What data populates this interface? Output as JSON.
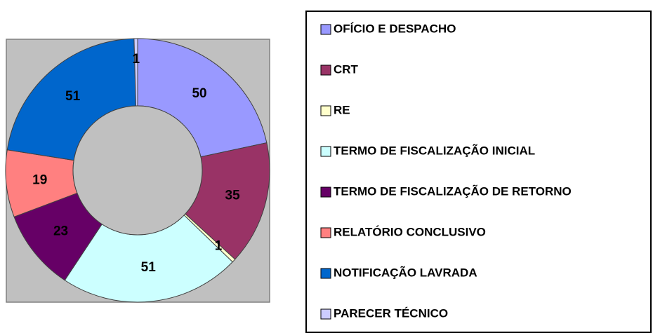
{
  "chart_data": {
    "type": "donut",
    "categories": [
      "OFÍCIO E DESPACHO",
      "CRT",
      "RE",
      "TERMO DE FISCALIZAÇÃO INICIAL",
      "TERMO DE FISCALIZAÇÃO DE RETORNO",
      "RELATÓRIO CONCLUSIVO",
      "NOTIFICAÇÃO LAVRADA",
      "PARECER TÉCNICO"
    ],
    "values": [
      50,
      35,
      1,
      51,
      23,
      19,
      51,
      1
    ],
    "colors": [
      "#9999ff",
      "#993366",
      "#ffffcc",
      "#ccffff",
      "#660066",
      "#ff8080",
      "#0066cc",
      "#ccccff"
    ],
    "legend": "right"
  }
}
